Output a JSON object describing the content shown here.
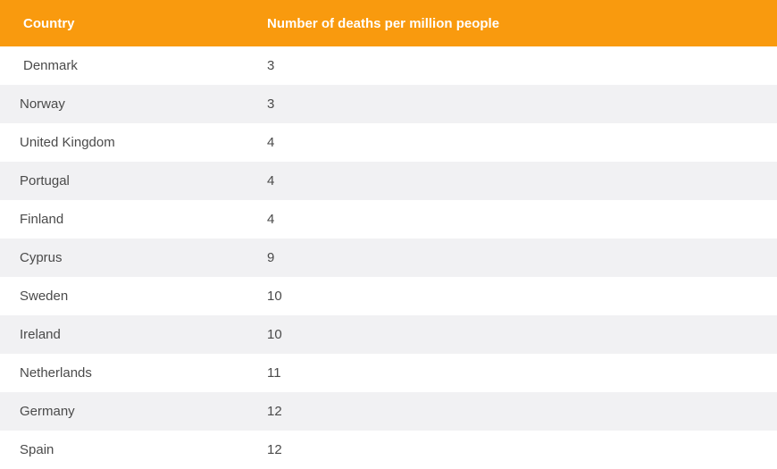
{
  "table": {
    "headers": [
      "Country",
      "Number of deaths per million people"
    ],
    "rows": [
      [
        " Denmark",
        "3"
      ],
      [
        "Norway",
        "3"
      ],
      [
        "United Kingdom",
        "4"
      ],
      [
        "Portugal",
        "4"
      ],
      [
        "Finland",
        "4"
      ],
      [
        "Cyprus",
        "9"
      ],
      [
        "Sweden",
        "10"
      ],
      [
        "Ireland",
        "10"
      ],
      [
        "Netherlands",
        "11"
      ],
      [
        "Germany",
        "12"
      ],
      [
        "Spain",
        "12"
      ]
    ]
  },
  "colors": {
    "header_bg": "#f99a0e",
    "alt_row_bg": "#f1f1f3"
  }
}
